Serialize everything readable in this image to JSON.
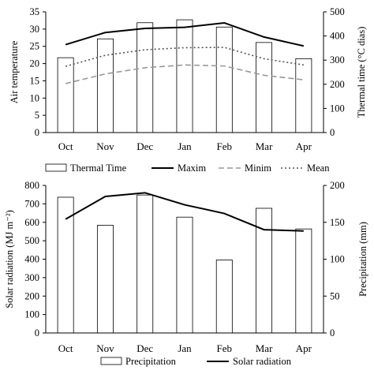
{
  "chart_data": [
    {
      "type": "bar",
      "categories": [
        "Oct",
        "Nov",
        "Dec",
        "Jan",
        "Feb",
        "Mar",
        "Apr"
      ],
      "ylabel": "Air temperature",
      "y2label": "Thermal time (°C dias)",
      "ylim": [
        0,
        35
      ],
      "y2lim": [
        0,
        500
      ],
      "yticks": [
        0,
        5,
        10,
        15,
        20,
        25,
        30,
        35
      ],
      "y2ticks": [
        0,
        100,
        200,
        300,
        400,
        500
      ],
      "bar_series": {
        "name": "Thermal Time",
        "axis": "right",
        "values": [
          310,
          388,
          455,
          467,
          437,
          373,
          306
        ]
      },
      "line_series": [
        {
          "name": "Maxim",
          "style": "solid",
          "color": "#000000",
          "axis": "left",
          "values": [
            25.5,
            29.0,
            30.2,
            30.5,
            31.8,
            27.7,
            25.1
          ]
        },
        {
          "name": "Minim",
          "style": "dashed",
          "color": "#999999",
          "axis": "left",
          "values": [
            14.2,
            17.0,
            18.8,
            19.6,
            19.3,
            16.6,
            15.3
          ]
        },
        {
          "name": "Mean",
          "style": "dotted",
          "color": "#555555",
          "axis": "left",
          "values": [
            19.2,
            22.4,
            24.0,
            24.6,
            24.7,
            21.4,
            19.6
          ]
        }
      ],
      "legend_position": "bottom",
      "grid": false
    },
    {
      "type": "bar",
      "categories": [
        "Oct",
        "Nov",
        "Dec",
        "Jan",
        "Feb",
        "Mar",
        "Apr"
      ],
      "ylabel": "Solar radiation (MJ m⁻²)",
      "y2label": "Precipitation (mm)",
      "ylim": [
        0,
        800
      ],
      "y2lim": [
        0,
        200
      ],
      "yticks": [
        0,
        100,
        200,
        300,
        400,
        500,
        600,
        700,
        800
      ],
      "y2ticks": [
        0,
        50,
        100,
        150,
        200
      ],
      "bar_series": {
        "name": "Precipitation",
        "axis": "right",
        "values": [
          184,
          146,
          187,
          157,
          99,
          169,
          141
        ]
      },
      "line_series": [
        {
          "name": "Solar radiation",
          "style": "solid",
          "color": "#000000",
          "axis": "left",
          "values": [
            617,
            740,
            760,
            695,
            648,
            560,
            553
          ]
        }
      ],
      "legend_position": "bottom",
      "grid": false
    }
  ]
}
